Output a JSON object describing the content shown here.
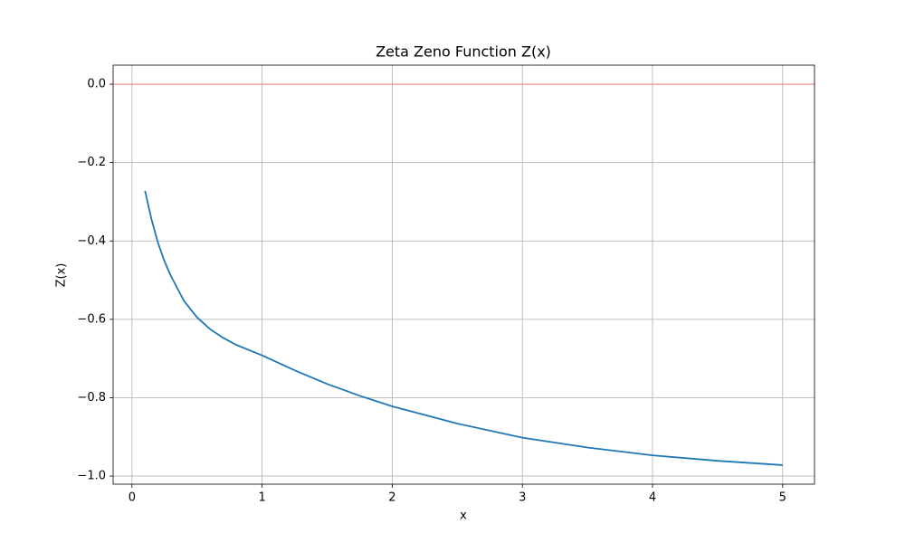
{
  "chart_data": {
    "type": "line",
    "title": "Zeta Zeno Function Z(x)",
    "x_label": "x",
    "y_label": "Z(x)",
    "x": [
      0.1,
      0.15,
      0.2,
      0.25,
      0.3,
      0.4,
      0.5,
      0.6,
      0.7,
      0.8,
      1.0,
      1.25,
      1.5,
      1.75,
      2.0,
      2.5,
      3.0,
      3.5,
      4.0,
      4.5,
      5.0
    ],
    "values": [
      -0.272,
      -0.345,
      -0.405,
      -0.452,
      -0.49,
      -0.553,
      -0.595,
      -0.625,
      -0.647,
      -0.665,
      -0.692,
      -0.73,
      -0.765,
      -0.795,
      -0.822,
      -0.866,
      -0.902,
      -0.927,
      -0.947,
      -0.961,
      -0.972
    ],
    "color": "#1f77b4",
    "hline": {
      "value": 0,
      "color": "#f08080"
    },
    "xlim": [
      -0.145,
      5.245
    ],
    "xticks": [
      0,
      1,
      2,
      3,
      4,
      5
    ],
    "ylim": [
      -1.0206,
      0.0486
    ],
    "yticks": [
      {
        "value": -1.0,
        "label": "−1.0"
      },
      {
        "value": -0.8,
        "label": "−0.8"
      },
      {
        "value": -0.6,
        "label": "−0.6"
      },
      {
        "value": -0.4,
        "label": "−0.4"
      },
      {
        "value": -0.2,
        "label": "−0.2"
      },
      {
        "value": 0.0,
        "label": "0.0"
      }
    ],
    "grid": true
  }
}
